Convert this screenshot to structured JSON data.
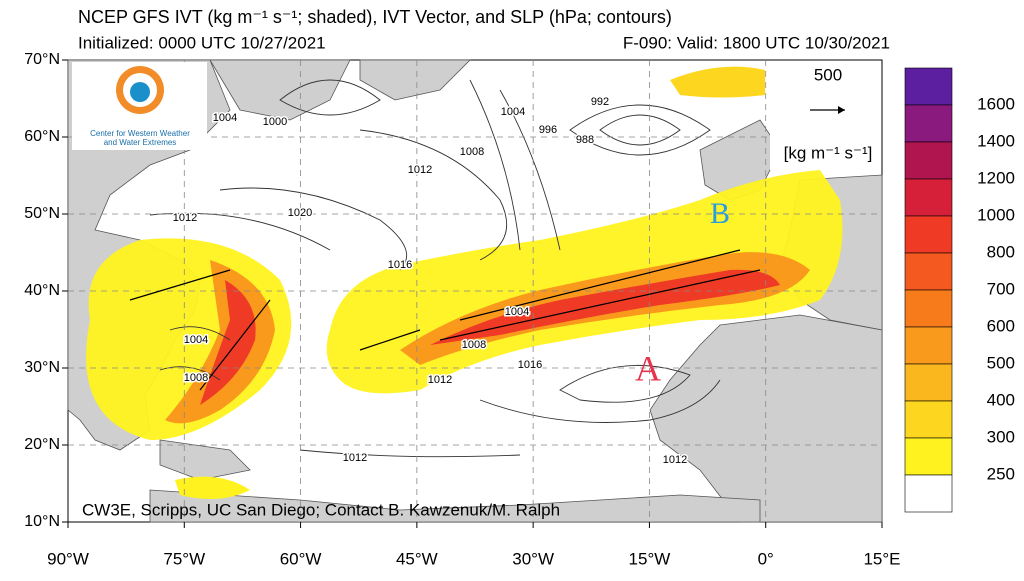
{
  "header": {
    "title": "NCEP GFS IVT (kg m⁻¹ s⁻¹; shaded), IVT Vector, and SLP (hPa; contours)",
    "initialized": "Initialized: 0000 UTC 10/27/2021",
    "valid": "F-090: Valid: 1800 UTC 10/30/2021"
  },
  "lat_labels": [
    "70°N",
    "60°N",
    "50°N",
    "40°N",
    "30°N",
    "20°N",
    "10°N"
  ],
  "lon_labels": [
    "90°W",
    "75°W",
    "60°W",
    "45°W",
    "30°W",
    "15°W",
    "0°",
    "15°E"
  ],
  "logo": {
    "line1": "Center for Western Weather",
    "line2": "and Water Extremes"
  },
  "vector_legend": {
    "magnitude": "500",
    "units": "[kg m⁻¹ s⁻¹]"
  },
  "colorbar": {
    "labels": [
      "1600",
      "1400",
      "1200",
      "1000",
      "800",
      "700",
      "600",
      "500",
      "400",
      "300",
      "250"
    ]
  },
  "contour_labels": [
    "1004",
    "1000",
    "1008",
    "1012",
    "1012",
    "1020",
    "1016",
    "1004",
    "1008",
    "1016",
    "1012",
    "1004",
    "1008",
    "1012",
    "1012",
    "992",
    "996",
    "988",
    "1004"
  ],
  "annotations": {
    "a": "A",
    "b": "B"
  },
  "credit": "CW3E, Scripps, UC San Diego; Contact B. Kawzenuk/M. Ralph"
}
